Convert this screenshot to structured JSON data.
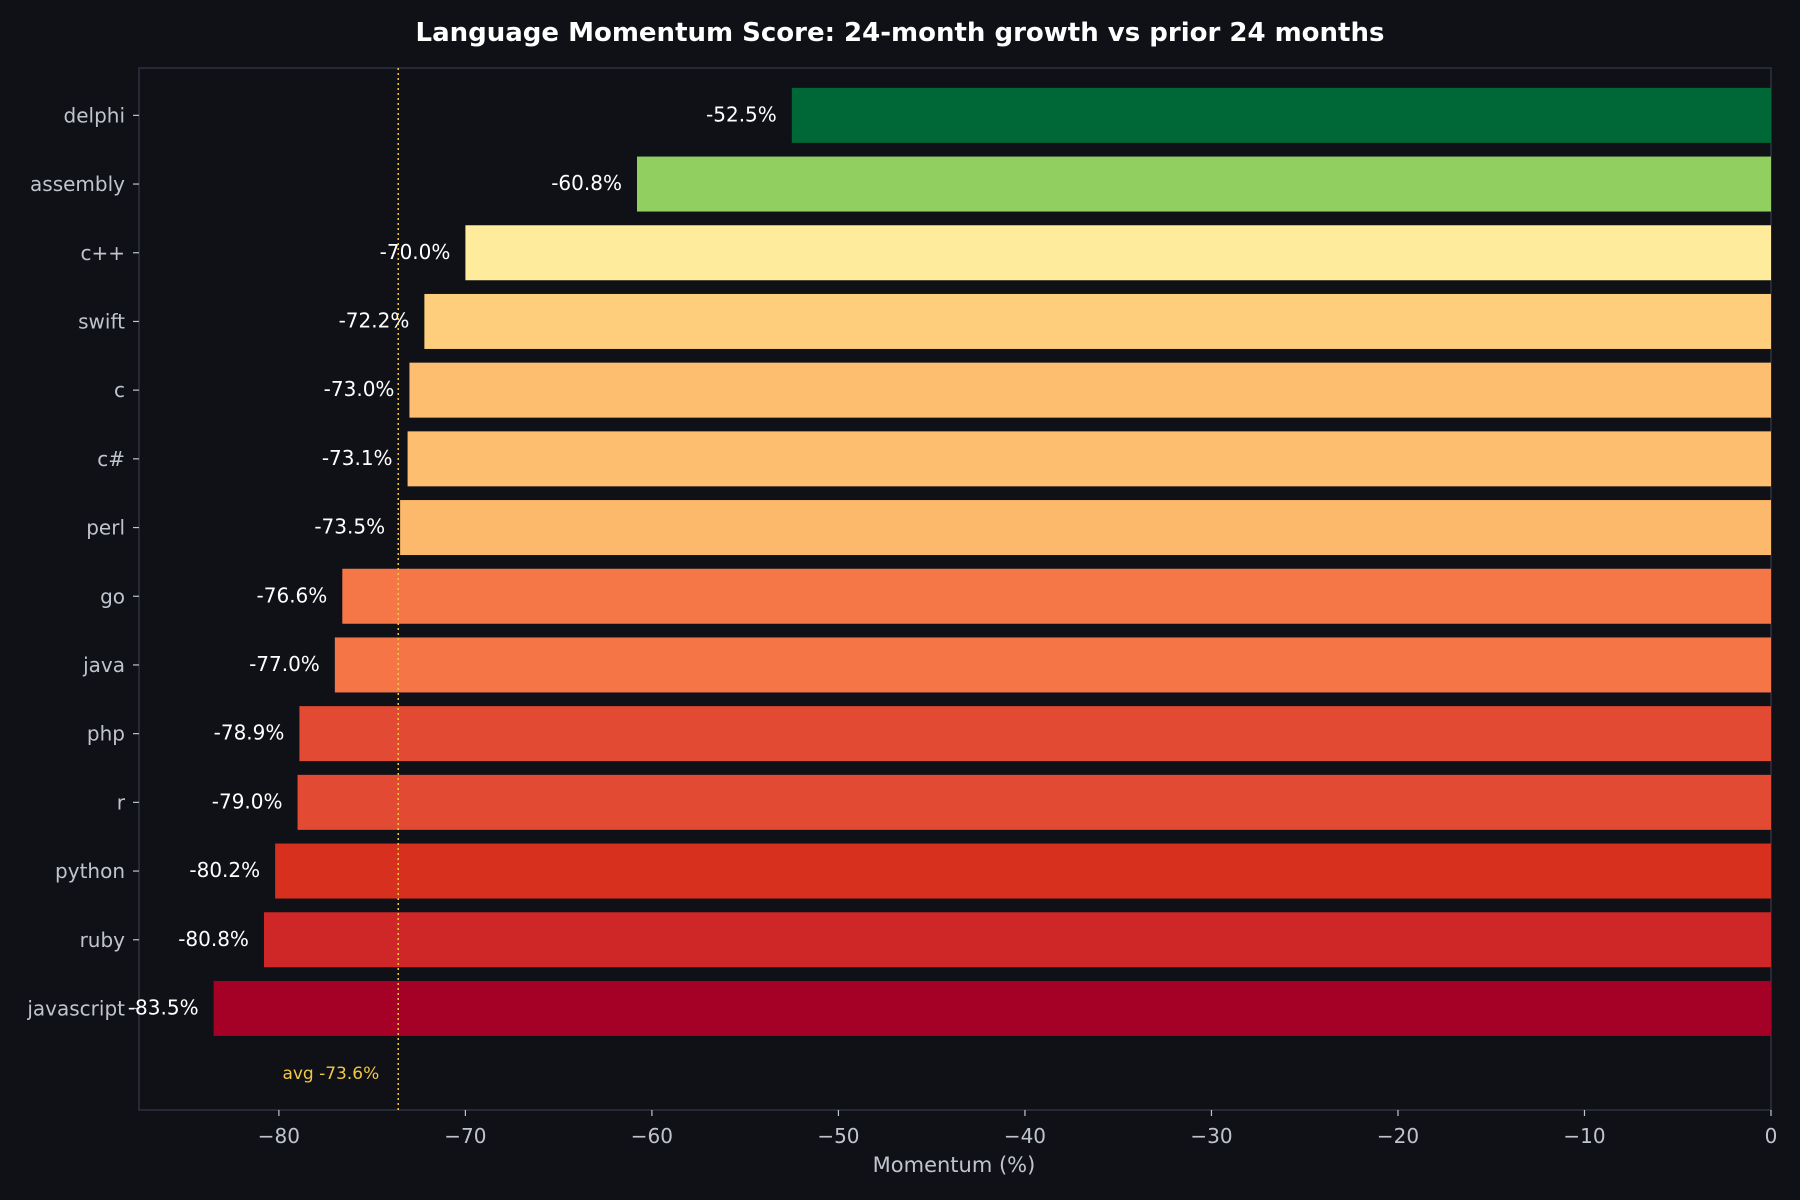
{
  "chart_data": {
    "type": "bar",
    "orientation": "horizontal",
    "title": "Language Momentum Score: 24-month growth vs prior 24 months",
    "xlabel": "Momentum (%)",
    "ylabel": "",
    "xlim": [
      -87.5,
      0
    ],
    "x_ticks": [
      -80,
      -70,
      -60,
      -50,
      -40,
      -30,
      -20,
      -10,
      0
    ],
    "x_tick_labels": [
      "−80",
      "−70",
      "−60",
      "−50",
      "−40",
      "−30",
      "−20",
      "−10",
      "0"
    ],
    "grid": false,
    "categories": [
      "delphi",
      "assembly",
      "c++",
      "swift",
      "c",
      "c#",
      "perl",
      "go",
      "java",
      "php",
      "r",
      "python",
      "ruby",
      "javascript"
    ],
    "values": [
      -52.5,
      -60.8,
      -70.0,
      -72.2,
      -73.0,
      -73.1,
      -73.5,
      -76.6,
      -77.0,
      -78.9,
      -79.0,
      -80.2,
      -80.8,
      -83.5
    ],
    "value_labels": [
      "-52.5%",
      "-60.8%",
      "-70.0%",
      "-72.2%",
      "-73.0%",
      "-73.1%",
      "-73.5%",
      "-76.6%",
      "-77.0%",
      "-78.9%",
      "-79.0%",
      "-80.2%",
      "-80.8%",
      "-83.5%"
    ],
    "colors": [
      "#006837",
      "#91cf60",
      "#ffeb9c",
      "#fece7c",
      "#fdbf6f",
      "#fdbf6f",
      "#fdb96b",
      "#f57748",
      "#f57547",
      "#e34a33",
      "#e34a33",
      "#d7301f",
      "#cf2727",
      "#a50026"
    ],
    "average": {
      "value": -73.6,
      "label": "avg -73.6%",
      "color": "#f2c744",
      "line_style": "dotted"
    }
  },
  "colors": {
    "background": "#0f1117",
    "axes_frame": "#2e3242",
    "text": "#c0c4cc",
    "title": "#ffffff"
  }
}
